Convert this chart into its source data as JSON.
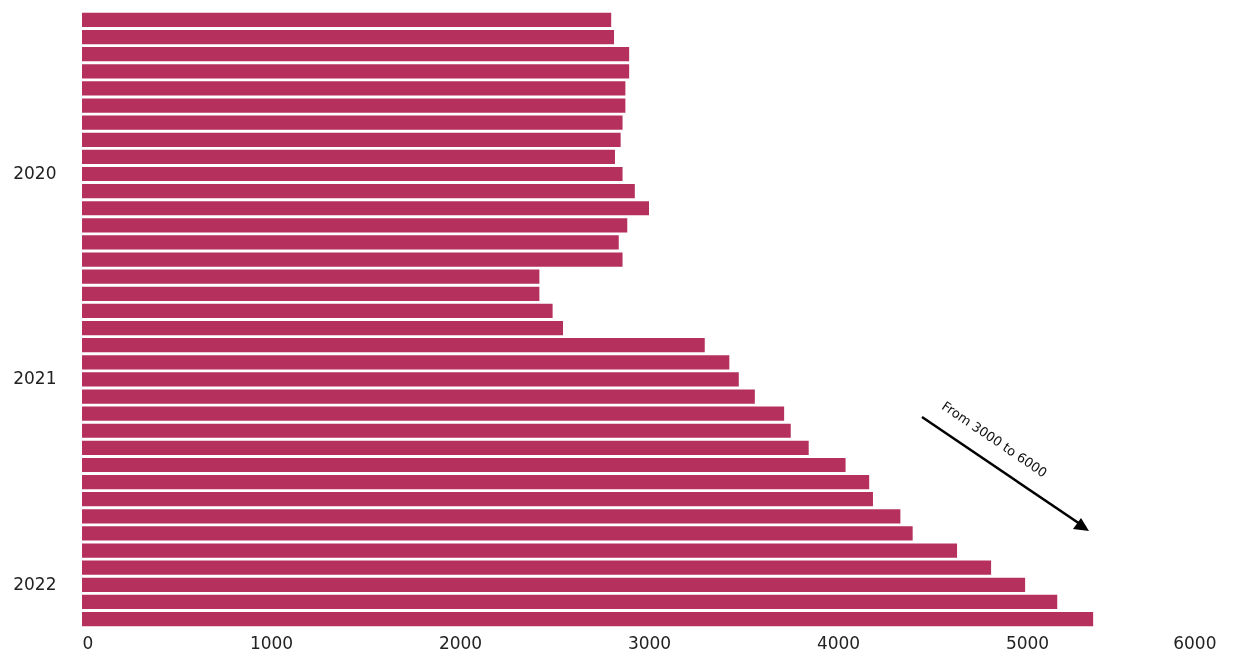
{
  "chart_data": {
    "type": "bar",
    "orientation": "horizontal",
    "color": "#b5305c",
    "categories": [
      null,
      null,
      null,
      null,
      null,
      null,
      null,
      null,
      null,
      "2020",
      null,
      null,
      null,
      null,
      null,
      null,
      null,
      null,
      null,
      null,
      null,
      "2021",
      null,
      null,
      null,
      null,
      null,
      null,
      null,
      null,
      null,
      null,
      null,
      "2022",
      null,
      null
    ],
    "values": [
      2800,
      2815,
      2895,
      2895,
      2875,
      2875,
      2860,
      2850,
      2820,
      2860,
      2925,
      3000,
      2885,
      2840,
      2860,
      2420,
      2420,
      2490,
      2545,
      3295,
      3425,
      3475,
      3560,
      3715,
      3750,
      3845,
      4040,
      4165,
      4185,
      4330,
      4395,
      4630,
      4810,
      4990,
      5160,
      5350
    ],
    "xlim": [
      0,
      6000
    ],
    "xticks": [
      0,
      1000,
      2000,
      3000,
      4000,
      5000,
      6000
    ],
    "grid": false,
    "annotations": [
      "From 3000 to 6000"
    ]
  }
}
